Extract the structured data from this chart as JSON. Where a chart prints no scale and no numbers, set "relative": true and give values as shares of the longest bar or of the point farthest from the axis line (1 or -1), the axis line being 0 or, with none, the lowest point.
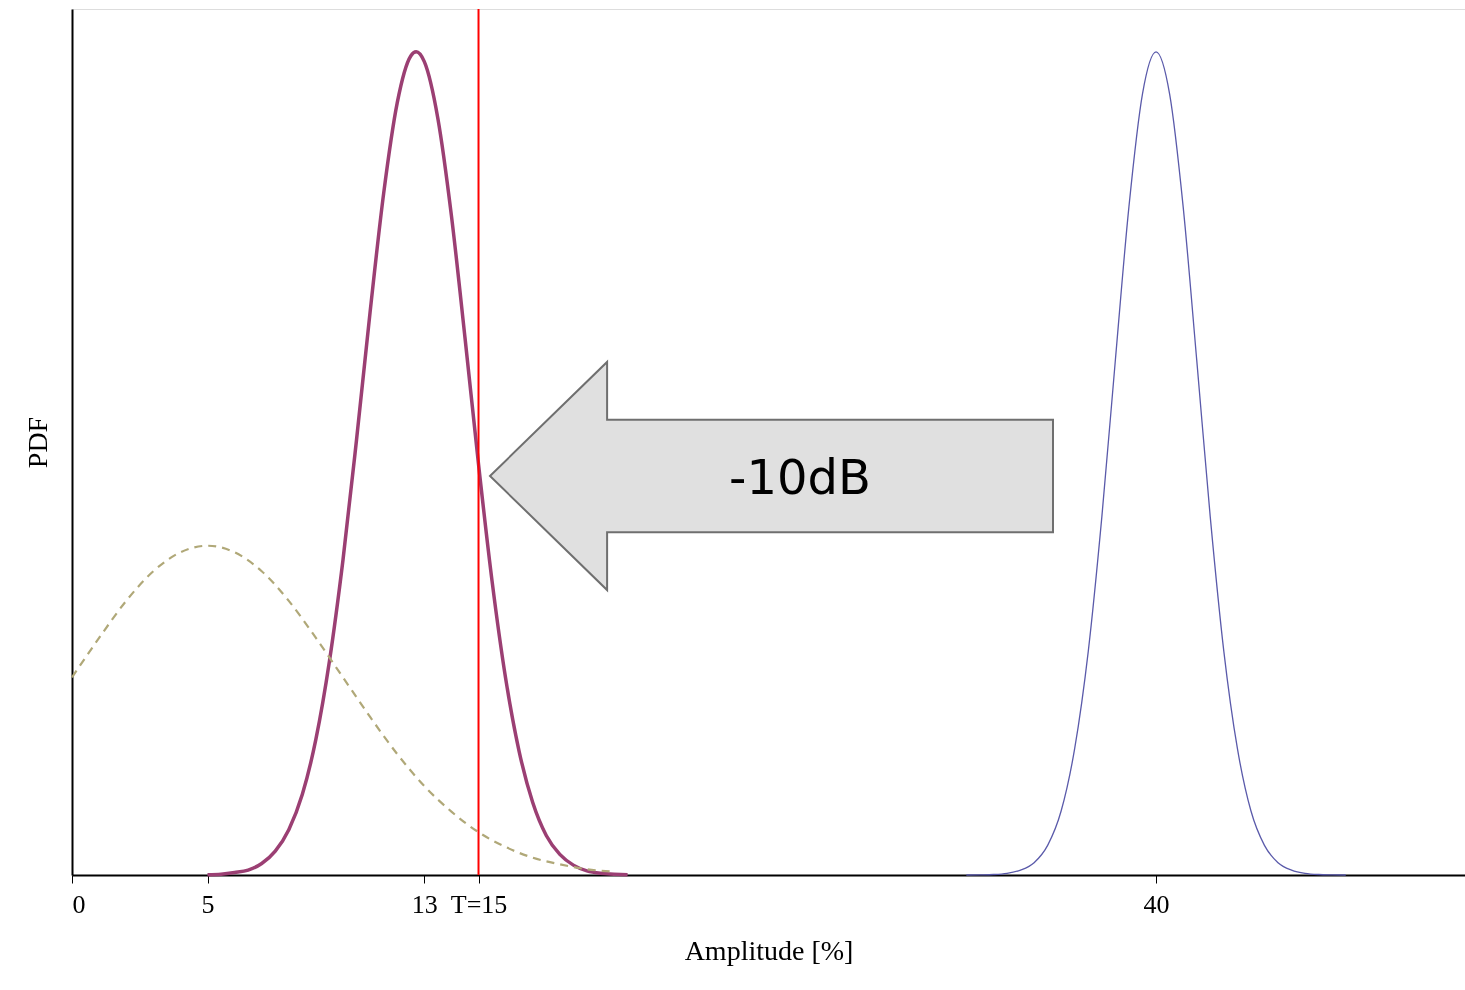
{
  "chart_data": {
    "type": "line",
    "relative": true,
    "xlabel": "Amplitude [%]",
    "ylabel": "PDF",
    "xlim": [
      0,
      51.4
    ],
    "xticks": [
      0,
      5,
      13,
      {
        "value": 15,
        "label": "T=15"
      },
      40
    ],
    "grid": false,
    "marker": "none",
    "ref_lines": [
      {
        "axis": "x",
        "value": 15,
        "color": "#ff0000"
      }
    ],
    "annotations": [
      "-10dB"
    ],
    "series": [
      {
        "color": "#9b3f73",
        "x": [
          5,
          5.5,
          6,
          6.5,
          7,
          7.5,
          8,
          8.5,
          9,
          9.5,
          10,
          10.5,
          11,
          11.5,
          12,
          12.5,
          12.7,
          13,
          13.5,
          14,
          14.5,
          15,
          15.5,
          16,
          16.5,
          17,
          17.5,
          18,
          18.5,
          19,
          19.5,
          20,
          20.5
        ],
        "values": [
          0.0004,
          0.001,
          0.003,
          0.006,
          0.014,
          0.029,
          0.055,
          0.098,
          0.165,
          0.26,
          0.383,
          0.529,
          0.684,
          0.828,
          0.938,
          0.995,
          1,
          0.988,
          0.919,
          0.801,
          0.653,
          0.499,
          0.357,
          0.239,
          0.15,
          0.088,
          0.048,
          0.025,
          0.012,
          0.005,
          0.002,
          0.001,
          0.0003
        ]
      },
      {
        "color": "#5a5aaa",
        "x": [
          33,
          33.5,
          34,
          34.5,
          35,
          35.5,
          36,
          36.5,
          37,
          37.5,
          38,
          38.5,
          39,
          39.5,
          40,
          40.5,
          41,
          41.5,
          42,
          42.5,
          43,
          43.5,
          44,
          44.5,
          45,
          45.5,
          46,
          46.5,
          47
        ],
        "values": [
          0,
          0.0002,
          0.0006,
          0.002,
          0.006,
          0.015,
          0.036,
          0.078,
          0.154,
          0.272,
          0.435,
          0.626,
          0.812,
          0.949,
          1,
          0.949,
          0.812,
          0.626,
          0.435,
          0.272,
          0.154,
          0.078,
          0.036,
          0.015,
          0.006,
          0.002,
          0.0006,
          0.0002,
          0
        ]
      },
      {
        "color": "#b0a878",
        "line_style": "dashed",
        "x": [
          0,
          1,
          2,
          3,
          4,
          5,
          6,
          7,
          8,
          9,
          10,
          11,
          12,
          13,
          14,
          15,
          16,
          17,
          18,
          19,
          20
        ],
        "values": [
          0.24,
          0.288,
          0.333,
          0.369,
          0.392,
          0.4,
          0.392,
          0.369,
          0.333,
          0.288,
          0.24,
          0.192,
          0.147,
          0.108,
          0.077,
          0.052,
          0.034,
          0.021,
          0.013,
          0.007,
          0.004
        ]
      }
    ]
  }
}
